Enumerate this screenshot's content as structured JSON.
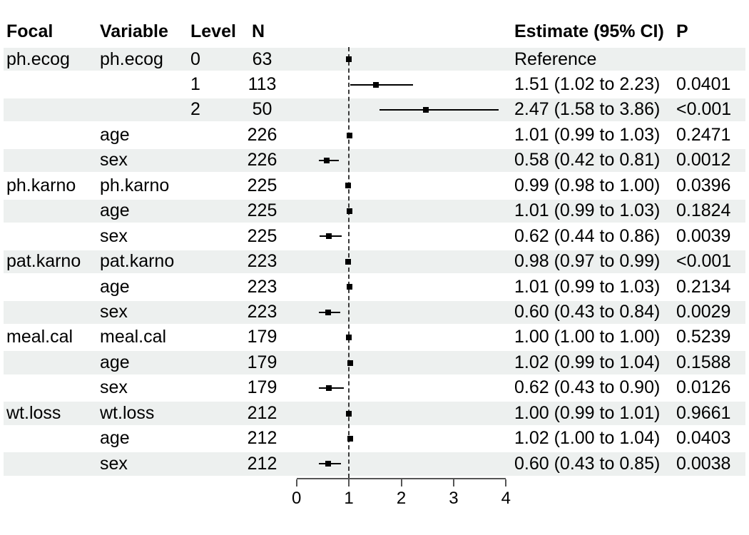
{
  "chart_data": {
    "type": "forest",
    "columns": {
      "focal": "Focal",
      "variable": "Variable",
      "level": "Level",
      "n": "N",
      "estimate": "Estimate (95% CI)",
      "p": "P"
    },
    "x_axis": {
      "ticks": [
        "0",
        "1",
        "2",
        "3",
        "4"
      ],
      "min": 0,
      "max": 4,
      "reference_line": 1
    },
    "rows": [
      {
        "focal": "ph.ecog",
        "variable": "ph.ecog",
        "level": "0",
        "n": "63",
        "est": 1.0,
        "lo": null,
        "hi": null,
        "estimate_label": "Reference",
        "p": ""
      },
      {
        "focal": "",
        "variable": "",
        "level": "1",
        "n": "113",
        "est": 1.51,
        "lo": 1.02,
        "hi": 2.23,
        "estimate_label": "1.51 (1.02 to 2.23)",
        "p": "0.0401"
      },
      {
        "focal": "",
        "variable": "",
        "level": "2",
        "n": "50",
        "est": 2.47,
        "lo": 1.58,
        "hi": 3.86,
        "estimate_label": "2.47 (1.58 to 3.86)",
        "p": "<0.001"
      },
      {
        "focal": "",
        "variable": "age",
        "level": "",
        "n": "226",
        "est": 1.01,
        "lo": 0.99,
        "hi": 1.03,
        "estimate_label": "1.01 (0.99 to 1.03)",
        "p": "0.2471"
      },
      {
        "focal": "",
        "variable": "sex",
        "level": "",
        "n": "226",
        "est": 0.58,
        "lo": 0.42,
        "hi": 0.81,
        "estimate_label": "0.58 (0.42 to 0.81)",
        "p": "0.0012"
      },
      {
        "focal": "ph.karno",
        "variable": "ph.karno",
        "level": "",
        "n": "225",
        "est": 0.99,
        "lo": 0.98,
        "hi": 1.0,
        "estimate_label": "0.99 (0.98 to 1.00)",
        "p": "0.0396"
      },
      {
        "focal": "",
        "variable": "age",
        "level": "",
        "n": "225",
        "est": 1.01,
        "lo": 0.99,
        "hi": 1.03,
        "estimate_label": "1.01 (0.99 to 1.03)",
        "p": "0.1824"
      },
      {
        "focal": "",
        "variable": "sex",
        "level": "",
        "n": "225",
        "est": 0.62,
        "lo": 0.44,
        "hi": 0.86,
        "estimate_label": "0.62 (0.44 to 0.86)",
        "p": "0.0039"
      },
      {
        "focal": "pat.karno",
        "variable": "pat.karno",
        "level": "",
        "n": "223",
        "est": 0.98,
        "lo": 0.97,
        "hi": 0.99,
        "estimate_label": "0.98 (0.97 to 0.99)",
        "p": "<0.001"
      },
      {
        "focal": "",
        "variable": "age",
        "level": "",
        "n": "223",
        "est": 1.01,
        "lo": 0.99,
        "hi": 1.03,
        "estimate_label": "1.01 (0.99 to 1.03)",
        "p": "0.2134"
      },
      {
        "focal": "",
        "variable": "sex",
        "level": "",
        "n": "223",
        "est": 0.6,
        "lo": 0.43,
        "hi": 0.84,
        "estimate_label": "0.60 (0.43 to 0.84)",
        "p": "0.0029"
      },
      {
        "focal": "meal.cal",
        "variable": "meal.cal",
        "level": "",
        "n": "179",
        "est": 1.0,
        "lo": 1.0,
        "hi": 1.0,
        "estimate_label": "1.00 (1.00 to 1.00)",
        "p": "0.5239"
      },
      {
        "focal": "",
        "variable": "age",
        "level": "",
        "n": "179",
        "est": 1.02,
        "lo": 0.99,
        "hi": 1.04,
        "estimate_label": "1.02 (0.99 to 1.04)",
        "p": "0.1588"
      },
      {
        "focal": "",
        "variable": "sex",
        "level": "",
        "n": "179",
        "est": 0.62,
        "lo": 0.43,
        "hi": 0.9,
        "estimate_label": "0.62 (0.43 to 0.90)",
        "p": "0.0126"
      },
      {
        "focal": "wt.loss",
        "variable": "wt.loss",
        "level": "",
        "n": "212",
        "est": 1.0,
        "lo": 0.99,
        "hi": 1.01,
        "estimate_label": "1.00 (0.99 to 1.01)",
        "p": "0.9661"
      },
      {
        "focal": "",
        "variable": "age",
        "level": "",
        "n": "212",
        "est": 1.02,
        "lo": 1.0,
        "hi": 1.04,
        "estimate_label": "1.02 (1.00 to 1.04)",
        "p": "0.0403"
      },
      {
        "focal": "",
        "variable": "sex",
        "level": "",
        "n": "212",
        "est": 0.6,
        "lo": 0.43,
        "hi": 0.85,
        "estimate_label": "0.60 (0.43 to 0.85)",
        "p": "0.0038"
      }
    ]
  },
  "colors": {
    "stripe": "#EDF0EF",
    "marker": "#000000",
    "ci_line": "#000000",
    "reference_line": "#3A3A3A",
    "axis": "#555555",
    "text": "#000000"
  }
}
